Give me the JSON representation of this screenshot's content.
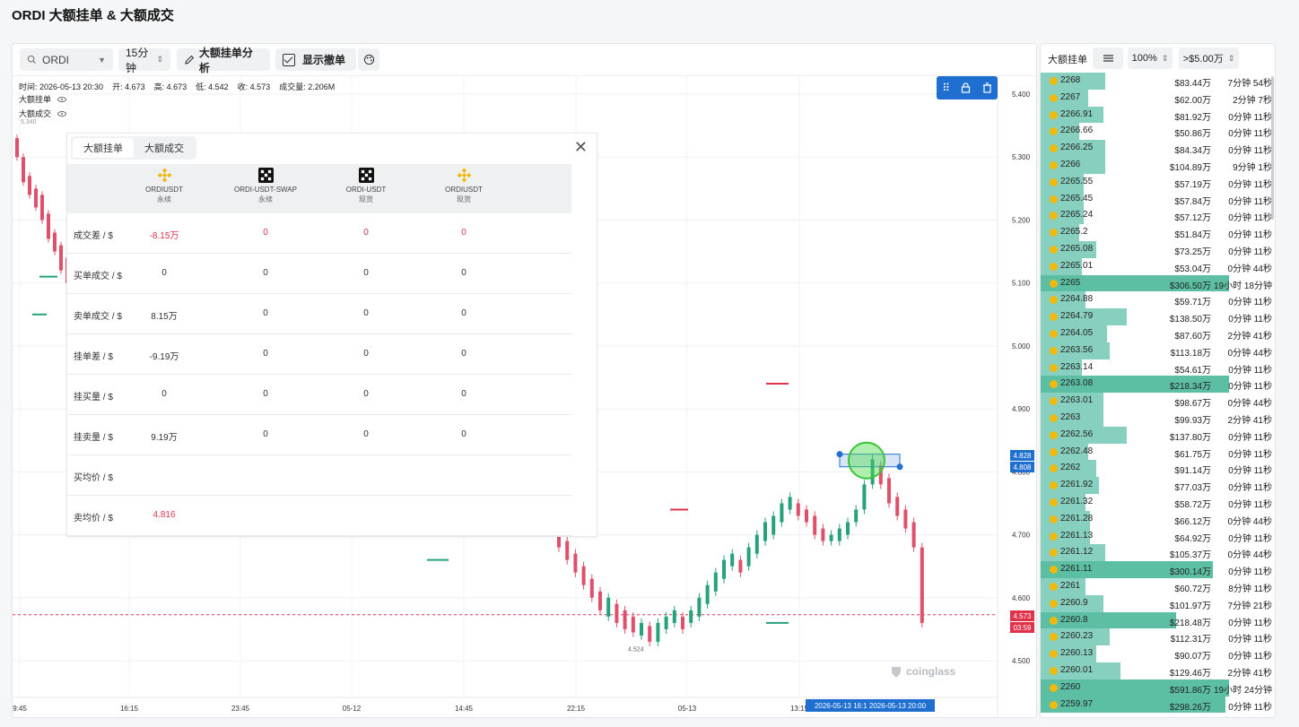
{
  "page": {
    "title": "ORDI 大额挂单 & 大额成交"
  },
  "toolbar": {
    "symbol": "ORDI",
    "interval": "15分钟",
    "analysis_label": "大额挂单分析",
    "cancel_label": "显示撤单"
  },
  "ohlc": {
    "time": "时间: 2026-05-13 20:30",
    "open": "开: 4.673",
    "high": "高: 4.673",
    "low": "低: 4.542",
    "close": "收: 4.573",
    "volume": "成交量: 2.206M"
  },
  "legend": {
    "orders": "大额挂单",
    "trades": "大额成交",
    "top_value": "5.340"
  },
  "chart_data": {
    "type": "candlestick",
    "y_ticks": [
      "5.400",
      "5.300",
      "5.200",
      "5.100",
      "5.000",
      "4.900",
      "4.800",
      "4.700",
      "4.600",
      "4.500"
    ],
    "x_ticks": [
      "9:45",
      "16:15",
      "23:45",
      "05-12",
      "14:45",
      "22:15",
      "05-13",
      "13:15"
    ],
    "price_tags": {
      "high_line_1": "4.828",
      "high_line_2": "4.808",
      "current": "4.573",
      "countdown": "03:59"
    },
    "low_label": "4.524",
    "time_range_label": "2026-05-13 16:1 2026-05-13 20:00",
    "colors": {
      "up": "#26a17b",
      "down": "#e0506a"
    }
  },
  "watermark": "coinglass",
  "panel": {
    "tabs": [
      "大额挂单",
      "大额成交"
    ],
    "columns": [
      {
        "name": "ORDIUSDT",
        "type": "永续",
        "exchange_icon": "binance-icon"
      },
      {
        "name": "ORDI-USDT-SWAP",
        "type": "永续",
        "exchange_icon": "okx-icon"
      },
      {
        "name": "ORDI-USDT",
        "type": "现货",
        "exchange_icon": "okx-icon"
      },
      {
        "name": "ORDIUSDT",
        "type": "现货",
        "exchange_icon": "binance-icon"
      }
    ],
    "rows": [
      {
        "label": "成交差 / $",
        "values": [
          "-8.15万",
          "0",
          "0",
          "0"
        ],
        "red": true
      },
      {
        "label": "买单成交 / $",
        "values": [
          "0",
          "0",
          "0",
          "0"
        ],
        "red": false
      },
      {
        "label": "卖单成交 / $",
        "values": [
          "8.15万",
          "0",
          "0",
          "0"
        ],
        "red": false
      },
      {
        "label": "挂单差 / $",
        "values": [
          "-9.19万",
          "0",
          "0",
          "0"
        ],
        "red": false
      },
      {
        "label": "挂买量 / $",
        "values": [
          "0",
          "0",
          "0",
          "0"
        ],
        "red": false
      },
      {
        "label": "挂卖量 / $",
        "values": [
          "9.19万",
          "0",
          "0",
          "0"
        ],
        "red": false
      },
      {
        "label": "买均价 / $",
        "values": [
          "",
          "",
          "",
          ""
        ],
        "red": false
      },
      {
        "label": "卖均价 / $",
        "values": [
          "4.816",
          "",
          "",
          ""
        ],
        "red": true
      }
    ]
  },
  "book": {
    "title": "大额挂单",
    "zoom": "100%",
    "filter": ">$5.00万",
    "rows": [
      {
        "price": "2268",
        "amount": "$83.44万",
        "time": "7分钟 54秒",
        "fill": 0.3
      },
      {
        "price": "2267",
        "amount": "$62.00万",
        "time": "2分钟 7秒",
        "fill": 0.22
      },
      {
        "price": "2266.91",
        "amount": "$81.92万",
        "time": "0分钟 11秒",
        "fill": 0.29
      },
      {
        "price": "2266.66",
        "amount": "$50.86万",
        "time": "0分钟 11秒",
        "fill": 0.18
      },
      {
        "price": "2266.25",
        "amount": "$84.34万",
        "time": "0分钟 11秒",
        "fill": 0.3
      },
      {
        "price": "2266",
        "amount": "$104.89万",
        "time": "9分钟 1秒",
        "fill": 0.3
      },
      {
        "price": "2265.55",
        "amount": "$57.19万",
        "time": "0分钟 11秒",
        "fill": 0.2
      },
      {
        "price": "2265.45",
        "amount": "$57.84万",
        "time": "0分钟 11秒",
        "fill": 0.2
      },
      {
        "price": "2265.24",
        "amount": "$57.12万",
        "time": "0分钟 11秒",
        "fill": 0.2
      },
      {
        "price": "2265.2",
        "amount": "$51.84万",
        "time": "0分钟 11秒",
        "fill": 0.18
      },
      {
        "price": "2265.08",
        "amount": "$73.25万",
        "time": "0分钟 11秒",
        "fill": 0.26
      },
      {
        "price": "2265.01",
        "amount": "$53.04万",
        "time": "0分钟 44秒",
        "fill": 0.19
      },
      {
        "price": "2265",
        "amount": "$306.50万",
        "time": "19小时 18分钟",
        "fill": 1.0,
        "big": true
      },
      {
        "price": "2264.88",
        "amount": "$59.71万",
        "time": "0分钟 11秒",
        "fill": 0.21
      },
      {
        "price": "2264.79",
        "amount": "$138.50万",
        "time": "0分钟 11秒",
        "fill": 0.4
      },
      {
        "price": "2264.05",
        "amount": "$87.60万",
        "time": "2分钟 41秒",
        "fill": 0.31
      },
      {
        "price": "2263.56",
        "amount": "$113.18万",
        "time": "0分钟 44秒",
        "fill": 0.32
      },
      {
        "price": "2263.14",
        "amount": "$54.61万",
        "time": "0分钟 11秒",
        "fill": 0.19
      },
      {
        "price": "2263.08",
        "amount": "$218.34万",
        "time": "0分钟 11秒",
        "fill": 1.0,
        "big": true
      },
      {
        "price": "2263.01",
        "amount": "$98.67万",
        "time": "0分钟 44秒",
        "fill": 0.29
      },
      {
        "price": "2263",
        "amount": "$99.93万",
        "time": "2分钟 41秒",
        "fill": 0.29
      },
      {
        "price": "2262.56",
        "amount": "$137.80万",
        "time": "0分钟 11秒",
        "fill": 0.4
      },
      {
        "price": "2262.48",
        "amount": "$61.75万",
        "time": "0分钟 11秒",
        "fill": 0.22
      },
      {
        "price": "2262",
        "amount": "$91.14万",
        "time": "0分钟 11秒",
        "fill": 0.26
      },
      {
        "price": "2261.92",
        "amount": "$77.03万",
        "time": "0分钟 11秒",
        "fill": 0.27
      },
      {
        "price": "2261.32",
        "amount": "$58.72万",
        "time": "0分钟 11秒",
        "fill": 0.21
      },
      {
        "price": "2261.28",
        "amount": "$66.12万",
        "time": "0分钟 44秒",
        "fill": 0.23
      },
      {
        "price": "2261.13",
        "amount": "$64.92万",
        "time": "0分钟 11秒",
        "fill": 0.23
      },
      {
        "price": "2261.12",
        "amount": "$105.37万",
        "time": "0分钟 44秒",
        "fill": 0.3
      },
      {
        "price": "2261.11",
        "amount": "$300.14万",
        "time": "0分钟 11秒",
        "fill": 0.8,
        "big": true
      },
      {
        "price": "2261",
        "amount": "$60.72万",
        "time": "8分钟 11秒",
        "fill": 0.21
      },
      {
        "price": "2260.9",
        "amount": "$101.97万",
        "time": "7分钟 21秒",
        "fill": 0.29
      },
      {
        "price": "2260.8",
        "amount": "$218.48万",
        "time": "0分钟 11秒",
        "fill": 0.63,
        "big": true
      },
      {
        "price": "2260.23",
        "amount": "$112.31万",
        "time": "0分钟 11秒",
        "fill": 0.32
      },
      {
        "price": "2260.13",
        "amount": "$90.07万",
        "time": "0分钟 11秒",
        "fill": 0.26
      },
      {
        "price": "2260.01",
        "amount": "$129.46万",
        "time": "2分钟 41秒",
        "fill": 0.37
      },
      {
        "price": "2260",
        "amount": "$591.86万",
        "time": "19小时 24分钟",
        "fill": 1.0,
        "big": true
      },
      {
        "price": "2259.97",
        "amount": "$298.26万",
        "time": "0分钟 11秒",
        "fill": 0.86,
        "big": true
      }
    ]
  }
}
